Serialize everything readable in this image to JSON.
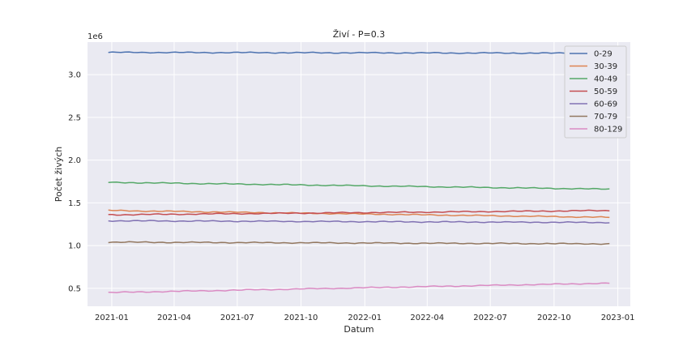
{
  "chart_data": {
    "type": "line",
    "title": "Živí - P=0.3",
    "xlabel": "Datum",
    "ylabel": "Počet živých",
    "y_offset_label": "1e6",
    "x_start": "2020-12-27",
    "x_end": "2022-12-20",
    "xlim": [
      "2020-11-27",
      "2023-01-19"
    ],
    "ylim": [
      0.29,
      3.38
    ],
    "x_ticks": [
      {
        "date": "2021-01-01",
        "label": "2021-01"
      },
      {
        "date": "2021-04-01",
        "label": "2021-04"
      },
      {
        "date": "2021-07-01",
        "label": "2021-07"
      },
      {
        "date": "2021-10-01",
        "label": "2021-10"
      },
      {
        "date": "2022-01-01",
        "label": "2022-01"
      },
      {
        "date": "2022-04-01",
        "label": "2022-04"
      },
      {
        "date": "2022-07-01",
        "label": "2022-07"
      },
      {
        "date": "2022-10-01",
        "label": "2022-10"
      },
      {
        "date": "2023-01-01",
        "label": "2023-01"
      }
    ],
    "y_ticks": [
      {
        "value": 0.5,
        "label": "0.5"
      },
      {
        "value": 1.0,
        "label": "1.0"
      },
      {
        "value": 1.5,
        "label": "1.5"
      },
      {
        "value": 2.0,
        "label": "2.0"
      },
      {
        "value": 2.5,
        "label": "2.5"
      },
      {
        "value": 3.0,
        "label": "3.0"
      }
    ],
    "grid": true,
    "legend_position": "top-right",
    "series": [
      {
        "name": "0-29",
        "color": "#4c72b0",
        "start": 3.26,
        "end": 3.25
      },
      {
        "name": "30-39",
        "color": "#dd8452",
        "start": 1.41,
        "end": 1.33
      },
      {
        "name": "40-49",
        "color": "#55a868",
        "start": 1.74,
        "end": 1.66
      },
      {
        "name": "50-59",
        "color": "#c44e52",
        "start": 1.36,
        "end": 1.41
      },
      {
        "name": "60-69",
        "color": "#8172b3",
        "start": 1.29,
        "end": 1.27
      },
      {
        "name": "70-79",
        "color": "#937860",
        "start": 1.04,
        "end": 1.02
      },
      {
        "name": "80-129",
        "color": "#da8bc3",
        "start": 0.45,
        "end": 0.56
      }
    ]
  }
}
